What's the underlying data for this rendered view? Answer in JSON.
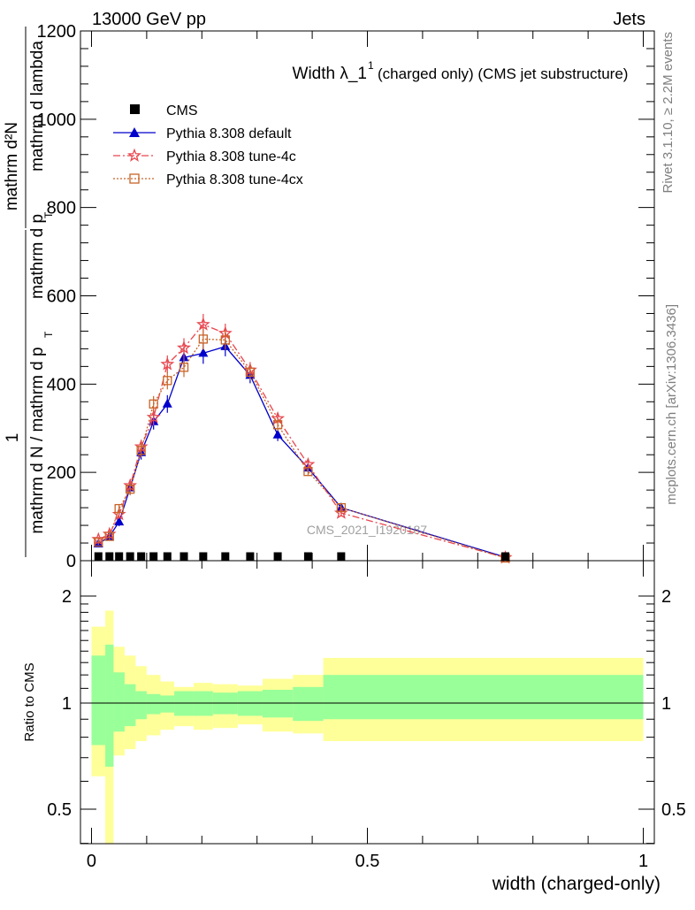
{
  "header": {
    "left": "13000 GeV pp",
    "right": "Jets"
  },
  "side": {
    "rivet": "Rivet 3.1.10, ≥ 2.2M events",
    "mcplots": "mcplots.cern.ch [arXiv:1306.3436]"
  },
  "chart_data": {
    "type": "line",
    "title": "Width λ_1",
    "title_sup": "1",
    "subtitle": "(charged only) (CMS jet substructure)",
    "watermark": "CMS_2021_I1920187",
    "xlabel": "width (charged-only)",
    "ylabel_main": {
      "numerator": "mathrm d²N",
      "denominator": "mathrm d p",
      "denominator_tail": "mathrm d lambda",
      "sub": "T",
      "prefix_num": "1",
      "prefix_den": "mathrm d N / mathrm d p",
      "prefix_sub": "T"
    },
    "ylabel_ratio": "Ratio to CMS",
    "xlim": [
      -0.02,
      1.02
    ],
    "ylim_main": [
      0,
      1200
    ],
    "ylim_ratio": [
      0.33,
      2.25
    ],
    "xticks": [
      "0",
      "0.5",
      "1"
    ],
    "xtick_values": [
      0,
      0.5,
      1
    ],
    "yticks_main": [
      "0",
      "200",
      "400",
      "600",
      "800",
      "1000",
      "1200"
    ],
    "ytick_values_main": [
      0,
      200,
      400,
      600,
      800,
      1000,
      1200
    ],
    "yticks_ratio": [
      "0.5",
      "1",
      "2"
    ],
    "ytick_values_ratio": [
      0.5,
      1,
      2
    ],
    "legend_position": "top-left",
    "cms": {
      "name": "CMS",
      "x": [
        0.0125,
        0.0325,
        0.05,
        0.07,
        0.09,
        0.1125,
        0.1375,
        0.1675,
        0.2025,
        0.2425,
        0.2875,
        0.3375,
        0.3925,
        0.4525,
        0.75
      ],
      "y": [
        2,
        2,
        3,
        4,
        4,
        5,
        5,
        5,
        5,
        5,
        5,
        4,
        3,
        2,
        0.5
      ]
    },
    "bin_edges": [
      0,
      0.025,
      0.04,
      0.06,
      0.08,
      0.1,
      0.125,
      0.15,
      0.185,
      0.22,
      0.265,
      0.31,
      0.365,
      0.42,
      1.0
    ],
    "band_stat": [
      [
        0.76,
        1.36
      ],
      [
        0.66,
        1.46
      ],
      [
        0.83,
        1.22
      ],
      [
        0.86,
        1.13
      ],
      [
        0.9,
        1.08
      ],
      [
        0.93,
        1.06
      ],
      [
        0.94,
        1.05
      ],
      [
        0.92,
        1.08
      ],
      [
        0.92,
        1.08
      ],
      [
        0.93,
        1.07
      ],
      [
        0.92,
        1.08
      ],
      [
        0.91,
        1.09
      ],
      [
        0.89,
        1.11
      ],
      [
        0.9,
        1.2
      ]
    ],
    "band_total": [
      [
        0.62,
        1.64
      ],
      [
        0.36,
        1.82
      ],
      [
        0.71,
        1.44
      ],
      [
        0.74,
        1.36
      ],
      [
        0.78,
        1.27
      ],
      [
        0.81,
        1.2
      ],
      [
        0.84,
        1.15
      ],
      [
        0.86,
        1.11
      ],
      [
        0.84,
        1.14
      ],
      [
        0.85,
        1.13
      ],
      [
        0.87,
        1.12
      ],
      [
        0.83,
        1.17
      ],
      [
        0.82,
        1.2
      ],
      [
        0.78,
        1.34
      ]
    ],
    "series": [
      {
        "name": "Pythia 8.308 default",
        "color": "#0000cc",
        "marker": "triangle",
        "dash": "",
        "x": [
          0.0125,
          0.0325,
          0.05,
          0.07,
          0.09,
          0.1125,
          0.1375,
          0.1675,
          0.2025,
          0.2425,
          0.2875,
          0.3375,
          0.3925,
          0.4525,
          0.75
        ],
        "y": [
          38,
          55,
          88,
          165,
          245,
          315,
          355,
          460,
          470,
          485,
          420,
          285,
          210,
          120,
          8
        ],
        "err": [
          6,
          8,
          10,
          14,
          16,
          18,
          20,
          22,
          24,
          22,
          18,
          14,
          10,
          8,
          2
        ]
      },
      {
        "name": "Pythia 8.308 tune-4c",
        "color": "#e8474f",
        "marker": "star",
        "dash": "8,3,2,3",
        "x": [
          0.0125,
          0.0325,
          0.05,
          0.07,
          0.09,
          0.1125,
          0.1375,
          0.1675,
          0.2025,
          0.2425,
          0.2875,
          0.3375,
          0.3925,
          0.4525,
          0.75
        ],
        "y": [
          48,
          60,
          105,
          170,
          258,
          325,
          445,
          482,
          535,
          515,
          432,
          322,
          218,
          108,
          7
        ],
        "err": [
          6,
          8,
          10,
          14,
          16,
          18,
          20,
          22,
          24,
          22,
          18,
          14,
          10,
          8,
          2
        ]
      },
      {
        "name": "Pythia 8.308 tune-4cx",
        "color": "#c86428",
        "marker": "square-open",
        "dash": "2,2",
        "x": [
          0.0125,
          0.0325,
          0.05,
          0.07,
          0.09,
          0.1125,
          0.1375,
          0.1675,
          0.2025,
          0.2425,
          0.2875,
          0.3375,
          0.3925,
          0.4525,
          0.75
        ],
        "y": [
          42,
          55,
          118,
          162,
          250,
          355,
          408,
          438,
          502,
          500,
          427,
          308,
          202,
          120,
          6
        ],
        "err": [
          6,
          8,
          10,
          14,
          16,
          18,
          20,
          22,
          24,
          22,
          18,
          14,
          10,
          8,
          2
        ]
      }
    ]
  }
}
